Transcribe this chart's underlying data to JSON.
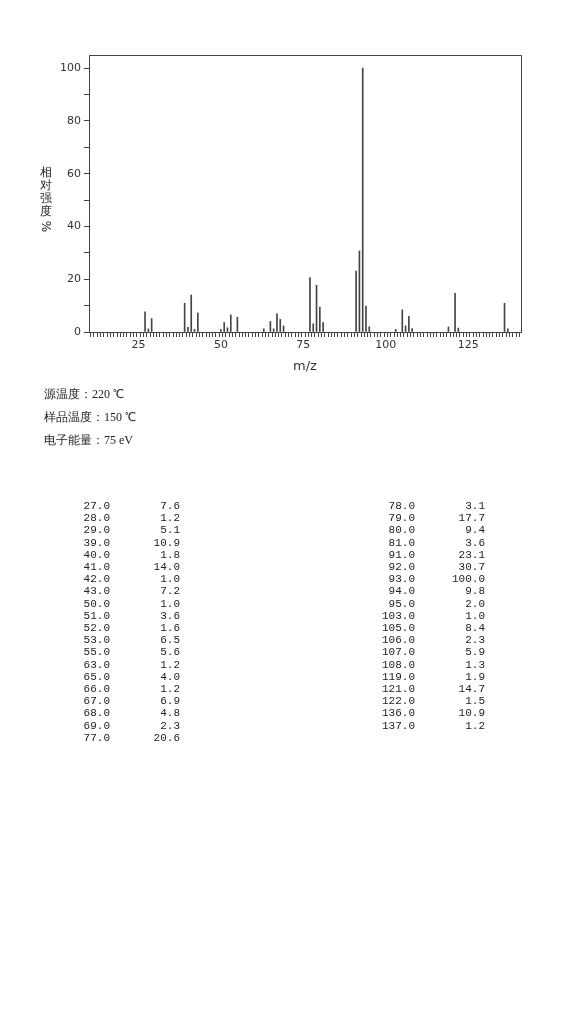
{
  "chart_data": {
    "type": "bar",
    "xlabel": "m/z",
    "ylabel": "相对强度 %",
    "x": [
      27,
      28,
      29,
      39,
      40,
      41,
      42,
      43,
      50,
      51,
      52,
      53,
      55,
      63,
      65,
      66,
      67,
      68,
      69,
      77,
      78,
      79,
      80,
      81,
      91,
      92,
      93,
      94,
      95,
      103,
      105,
      106,
      107,
      108,
      119,
      121,
      122,
      136,
      137
    ],
    "series": [
      {
        "color": "#444444",
        "values": [
          7.6,
          1.2,
          5.1,
          10.9,
          1.8,
          14.0,
          1.0,
          7.2,
          1.0,
          3.6,
          1.6,
          6.5,
          5.6,
          1.2,
          4.0,
          1.2,
          6.9,
          4.8,
          2.3,
          20.6,
          3.1,
          17.7,
          9.4,
          3.6,
          23.1,
          30.7,
          100.0,
          9.8,
          2.0,
          1.0,
          8.4,
          2.3,
          5.9,
          1.3,
          1.9,
          14.7,
          1.5,
          10.9,
          1.2
        ]
      }
    ],
    "xlim": [
      10,
      141
    ],
    "xticks": [
      {
        "value": 10,
        "label": null
      },
      {
        "value": 11,
        "label": null
      },
      {
        "value": 12,
        "label": null
      },
      {
        "value": 13,
        "label": null
      },
      {
        "value": 14,
        "label": null
      },
      {
        "value": 15,
        "label": null
      },
      {
        "value": 16,
        "label": null
      },
      {
        "value": 17,
        "label": null
      },
      {
        "value": 18,
        "label": null
      },
      {
        "value": 19,
        "label": null
      },
      {
        "value": 20,
        "label": null
      },
      {
        "value": 21,
        "label": null
      },
      {
        "value": 22,
        "label": null
      },
      {
        "value": 23,
        "label": null
      },
      {
        "value": 24,
        "label": null
      },
      25,
      {
        "value": 26,
        "label": null
      },
      {
        "value": 27,
        "label": null
      },
      {
        "value": 28,
        "label": null
      },
      {
        "value": 29,
        "label": null
      },
      {
        "value": 30,
        "label": null
      },
      {
        "value": 31,
        "label": null
      },
      {
        "value": 32,
        "label": null
      },
      {
        "value": 33,
        "label": null
      },
      {
        "value": 34,
        "label": null
      },
      {
        "value": 35,
        "label": null
      },
      {
        "value": 36,
        "label": null
      },
      {
        "value": 37,
        "label": null
      },
      {
        "value": 38,
        "label": null
      },
      {
        "value": 39,
        "label": null
      },
      {
        "value": 40,
        "label": null
      },
      {
        "value": 41,
        "label": null
      },
      {
        "value": 42,
        "label": null
      },
      {
        "value": 43,
        "label": null
      },
      {
        "value": 44,
        "label": null
      },
      {
        "value": 45,
        "label": null
      },
      {
        "value": 46,
        "label": null
      },
      {
        "value": 47,
        "label": null
      },
      {
        "value": 48,
        "label": null
      },
      {
        "value": 49,
        "label": null
      },
      50,
      {
        "value": 51,
        "label": null
      },
      {
        "value": 52,
        "label": null
      },
      {
        "value": 53,
        "label": null
      },
      {
        "value": 54,
        "label": null
      },
      {
        "value": 55,
        "label": null
      },
      {
        "value": 56,
        "label": null
      },
      {
        "value": 57,
        "label": null
      },
      {
        "value": 58,
        "label": null
      },
      {
        "value": 59,
        "label": null
      },
      {
        "value": 60,
        "label": null
      },
      {
        "value": 61,
        "label": null
      },
      {
        "value": 62,
        "label": null
      },
      {
        "value": 63,
        "label": null
      },
      {
        "value": 64,
        "label": null
      },
      {
        "value": 65,
        "label": null
      },
      {
        "value": 66,
        "label": null
      },
      {
        "value": 67,
        "label": null
      },
      {
        "value": 68,
        "label": null
      },
      {
        "value": 69,
        "label": null
      },
      {
        "value": 70,
        "label": null
      },
      {
        "value": 71,
        "label": null
      },
      {
        "value": 72,
        "label": null
      },
      {
        "value": 73,
        "label": null
      },
      {
        "value": 74,
        "label": null
      },
      75,
      {
        "value": 76,
        "label": null
      },
      {
        "value": 77,
        "label": null
      },
      {
        "value": 78,
        "label": null
      },
      {
        "value": 79,
        "label": null
      },
      {
        "value": 80,
        "label": null
      },
      {
        "value": 81,
        "label": null
      },
      {
        "value": 82,
        "label": null
      },
      {
        "value": 83,
        "label": null
      },
      {
        "value": 84,
        "label": null
      },
      {
        "value": 85,
        "label": null
      },
      {
        "value": 86,
        "label": null
      },
      {
        "value": 87,
        "label": null
      },
      {
        "value": 88,
        "label": null
      },
      {
        "value": 89,
        "label": null
      },
      {
        "value": 90,
        "label": null
      },
      {
        "value": 91,
        "label": null
      },
      {
        "value": 92,
        "label": null
      },
      {
        "value": 93,
        "label": null
      },
      {
        "value": 94,
        "label": null
      },
      {
        "value": 95,
        "label": null
      },
      {
        "value": 96,
        "label": null
      },
      {
        "value": 97,
        "label": null
      },
      {
        "value": 98,
        "label": null
      },
      {
        "value": 99,
        "label": null
      },
      100,
      {
        "value": 101,
        "label": null
      },
      {
        "value": 102,
        "label": null
      },
      {
        "value": 103,
        "label": null
      },
      {
        "value": 104,
        "label": null
      },
      {
        "value": 105,
        "label": null
      },
      {
        "value": 106,
        "label": null
      },
      {
        "value": 107,
        "label": null
      },
      {
        "value": 108,
        "label": null
      },
      {
        "value": 109,
        "label": null
      },
      {
        "value": 110,
        "label": null
      },
      {
        "value": 111,
        "label": null
      },
      {
        "value": 112,
        "label": null
      },
      {
        "value": 113,
        "label": null
      },
      {
        "value": 114,
        "label": null
      },
      {
        "value": 115,
        "label": null
      },
      {
        "value": 116,
        "label": null
      },
      {
        "value": 117,
        "label": null
      },
      {
        "value": 118,
        "label": null
      },
      {
        "value": 119,
        "label": null
      },
      {
        "value": 120,
        "label": null
      },
      {
        "value": 121,
        "label": null
      },
      {
        "value": 122,
        "label": null
      },
      {
        "value": 123,
        "label": null
      },
      {
        "value": 124,
        "label": null
      },
      125,
      {
        "value": 126,
        "label": null
      },
      {
        "value": 127,
        "label": null
      },
      {
        "value": 128,
        "label": null
      },
      {
        "value": 129,
        "label": null
      },
      {
        "value": 130,
        "label": null
      },
      {
        "value": 131,
        "label": null
      },
      {
        "value": 132,
        "label": null
      },
      {
        "value": 133,
        "label": null
      },
      {
        "value": 134,
        "label": null
      },
      {
        "value": 135,
        "label": null
      },
      {
        "value": 136,
        "label": null
      },
      {
        "value": 137,
        "label": null
      },
      {
        "value": 138,
        "label": null
      },
      {
        "value": 139,
        "label": null
      },
      {
        "value": 140,
        "label": null
      }
    ],
    "ylim": [
      0,
      105
    ],
    "yticks": [
      0,
      {
        "value": 10,
        "label": null
      },
      20,
      {
        "value": 30,
        "label": null
      },
      40,
      {
        "value": 50,
        "label": null
      },
      60,
      {
        "value": 70,
        "label": null
      },
      80,
      {
        "value": 90,
        "label": null
      },
      100
    ],
    "grid": false,
    "legend": false,
    "annotations": [
      "源温度：220 ℃",
      "样品温度：150 ℃",
      "电子能量：75 eV",
      "27.0",
      "7.6",
      "28.0",
      "1.2",
      "29.0",
      "5.1",
      "39.0",
      "10.9",
      "40.0",
      "1.8",
      "41.0",
      "14.0",
      "42.0",
      "1.0",
      "43.0",
      "7.2",
      "50.0",
      "1.0",
      "51.0",
      "3.6",
      "52.0",
      "1.6",
      "53.0",
      "6.5",
      "55.0",
      "5.6",
      "63.0",
      "1.2",
      "65.0",
      "4.0",
      "66.0",
      "1.2",
      "67.0",
      "6.9",
      "68.0",
      "4.8",
      "69.0",
      "2.3",
      "77.0",
      "20.6",
      "78.0",
      "3.1",
      "79.0",
      "17.7",
      "80.0",
      "9.4",
      "81.0",
      "3.6",
      "91.0",
      "23.1",
      "92.0",
      "30.7",
      "93.0",
      "100.0",
      "94.0",
      "9.8",
      "95.0",
      "2.0",
      "103.0",
      "1.0",
      "105.0",
      "8.4",
      "106.0",
      "2.3",
      "107.0",
      "5.9",
      "108.0",
      "1.3",
      "119.0",
      "1.9",
      "121.0",
      "14.7",
      "122.0",
      "1.5",
      "136.0",
      "10.9",
      "137.0",
      "1.2"
    ]
  }
}
